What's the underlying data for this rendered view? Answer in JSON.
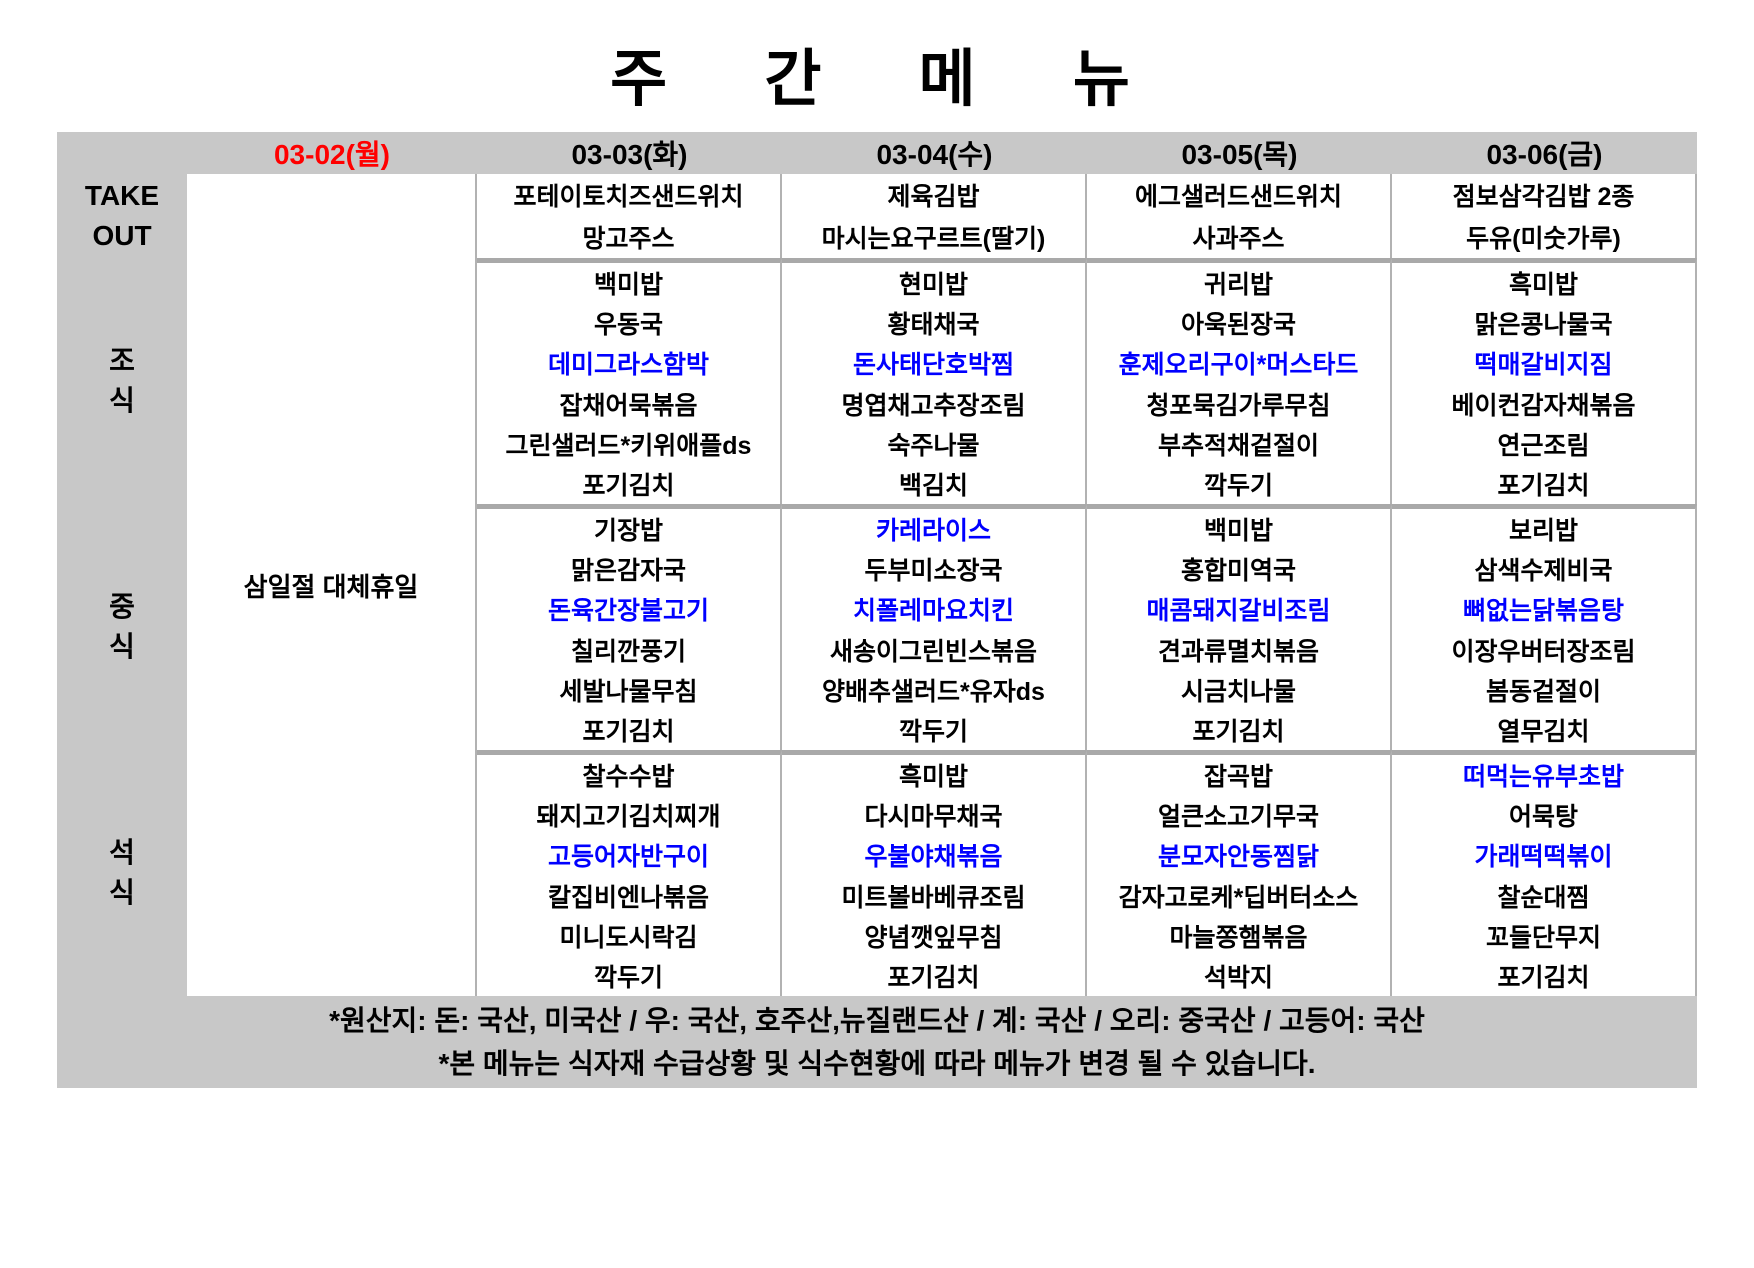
{
  "title": "주 간 메 뉴",
  "colors": {
    "header_band": "#c8c8c8",
    "highlight_item": "#0000ff",
    "holiday_date": "#ff0000",
    "thin_border": "#b2b2b2",
    "thick_border": "#a9a9a9"
  },
  "header": {
    "dates": [
      {
        "label": "03-02(월)",
        "color": "#ff0000"
      },
      {
        "label": "03-03(화)",
        "color": "#000000"
      },
      {
        "label": "03-04(수)",
        "color": "#000000"
      },
      {
        "label": "03-05(목)",
        "color": "#000000"
      },
      {
        "label": "03-06(금)",
        "color": "#000000"
      }
    ]
  },
  "row_labels": {
    "takeout": [
      "TAKE",
      "OUT"
    ],
    "breakfast": [
      "조",
      "식"
    ],
    "lunch": [
      "중",
      "식"
    ],
    "dinner": [
      "석",
      "식"
    ]
  },
  "holiday_note": "삼일절 대체휴일",
  "sections": [
    {
      "name": "takeout",
      "days": [
        {
          "items": [
            {
              "text": "포테이토치즈샌드위치"
            },
            {
              "text": "망고주스"
            }
          ]
        },
        {
          "items": [
            {
              "text": "제육김밥"
            },
            {
              "text": "마시는요구르트(딸기)"
            }
          ]
        },
        {
          "items": [
            {
              "text": "에그샐러드샌드위치"
            },
            {
              "text": "사과주스"
            }
          ]
        },
        {
          "items": [
            {
              "text": "점보삼각김밥 2종"
            },
            {
              "text": "두유(미숫가루)"
            }
          ]
        }
      ]
    },
    {
      "name": "breakfast",
      "days": [
        {
          "items": [
            {
              "text": "백미밥"
            },
            {
              "text": "우동국"
            },
            {
              "text": "데미그라스함박",
              "highlight": true
            },
            {
              "text": "잡채어묵볶음"
            },
            {
              "text": "그린샐러드*키위애플ds"
            },
            {
              "text": "포기김치"
            }
          ]
        },
        {
          "items": [
            {
              "text": "현미밥"
            },
            {
              "text": "황태채국"
            },
            {
              "text": "돈사태단호박찜",
              "highlight": true
            },
            {
              "text": "명엽채고추장조림"
            },
            {
              "text": "숙주나물"
            },
            {
              "text": "백김치"
            }
          ]
        },
        {
          "items": [
            {
              "text": "귀리밥"
            },
            {
              "text": "아욱된장국"
            },
            {
              "text": "훈제오리구이*머스타드",
              "highlight": true
            },
            {
              "text": "청포묵김가루무침"
            },
            {
              "text": "부추적채겉절이"
            },
            {
              "text": "깍두기"
            }
          ]
        },
        {
          "items": [
            {
              "text": "흑미밥"
            },
            {
              "text": "맑은콩나물국"
            },
            {
              "text": "떡매갈비지짐",
              "highlight": true
            },
            {
              "text": "베이컨감자채볶음"
            },
            {
              "text": "연근조림"
            },
            {
              "text": "포기김치"
            }
          ]
        }
      ]
    },
    {
      "name": "lunch",
      "days": [
        {
          "items": [
            {
              "text": "기장밥"
            },
            {
              "text": "맑은감자국"
            },
            {
              "text": "돈육간장불고기",
              "highlight": true
            },
            {
              "text": "칠리깐풍기"
            },
            {
              "text": "세발나물무침"
            },
            {
              "text": "포기김치"
            }
          ]
        },
        {
          "items": [
            {
              "text": "카레라이스",
              "highlight": true
            },
            {
              "text": "두부미소장국"
            },
            {
              "text": "치폴레마요치킨",
              "highlight": true
            },
            {
              "text": "새송이그린빈스볶음"
            },
            {
              "text": "양배추샐러드*유자ds"
            },
            {
              "text": "깍두기"
            }
          ]
        },
        {
          "items": [
            {
              "text": "백미밥"
            },
            {
              "text": "홍합미역국"
            },
            {
              "text": "매콤돼지갈비조림",
              "highlight": true
            },
            {
              "text": "견과류멸치볶음"
            },
            {
              "text": "시금치나물"
            },
            {
              "text": "포기김치"
            }
          ]
        },
        {
          "items": [
            {
              "text": "보리밥"
            },
            {
              "text": "삼색수제비국"
            },
            {
              "text": "뼈없는닭볶음탕",
              "highlight": true
            },
            {
              "text": "이장우버터장조림"
            },
            {
              "text": "봄동겉절이"
            },
            {
              "text": "열무김치"
            }
          ]
        }
      ]
    },
    {
      "name": "dinner",
      "days": [
        {
          "items": [
            {
              "text": "찰수수밥"
            },
            {
              "text": "돼지고기김치찌개"
            },
            {
              "text": "고등어자반구이",
              "highlight": true
            },
            {
              "text": "칼집비엔나볶음"
            },
            {
              "text": "미니도시락김"
            },
            {
              "text": "깍두기"
            }
          ]
        },
        {
          "items": [
            {
              "text": "흑미밥"
            },
            {
              "text": "다시마무채국"
            },
            {
              "text": "우불야채볶음",
              "highlight": true
            },
            {
              "text": "미트볼바베큐조림"
            },
            {
              "text": "양념깻잎무침"
            },
            {
              "text": "포기김치"
            }
          ]
        },
        {
          "items": [
            {
              "text": "잡곡밥"
            },
            {
              "text": "얼큰소고기무국"
            },
            {
              "text": "분모자안동찜닭",
              "highlight": true
            },
            {
              "text": "감자고로케*딥버터소스"
            },
            {
              "text": "마늘쫑햄볶음"
            },
            {
              "text": "석박지"
            }
          ]
        },
        {
          "items": [
            {
              "text": "떠먹는유부초밥",
              "highlight": true
            },
            {
              "text": "어묵탕"
            },
            {
              "text": "가래떡떡볶이",
              "highlight": true
            },
            {
              "text": "찰순대찜"
            },
            {
              "text": "꼬들단무지"
            },
            {
              "text": "포기김치"
            }
          ]
        }
      ]
    }
  ],
  "footer": {
    "lines": [
      "*원산지: 돈: 국산, 미국산 / 우: 국산, 호주산,뉴질랜드산 / 계: 국산 / 오리: 중국산 / 고등어: 국산",
      "*본 메뉴는 식자재 수급상황 및 식수현황에 따라 메뉴가 변경 될 수 있습니다."
    ]
  }
}
